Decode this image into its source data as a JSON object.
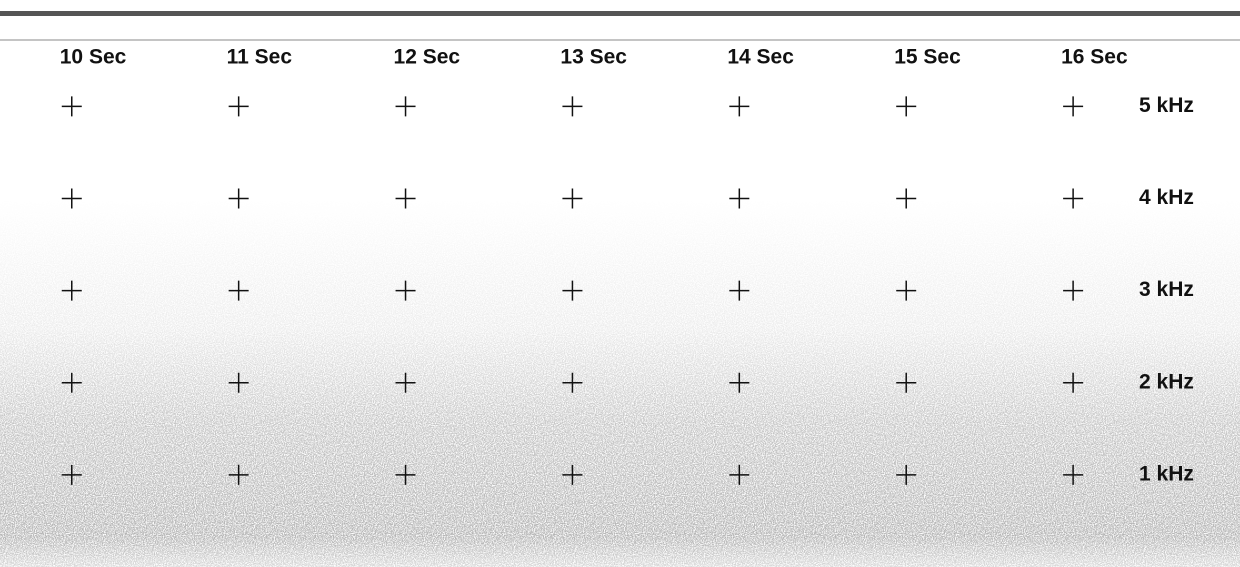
{
  "chart_data": {
    "type": "spectrogram",
    "xlim": [
      9.57,
      17
    ],
    "xticks": [
      {
        "value": 10,
        "label": "10 Sec"
      },
      {
        "value": 11,
        "label": "11 Sec"
      },
      {
        "value": 12,
        "label": "12 Sec"
      },
      {
        "value": 13,
        "label": "13 Sec"
      },
      {
        "value": 14,
        "label": "14 Sec"
      },
      {
        "value": 15,
        "label": "15 Sec"
      },
      {
        "value": 16,
        "label": "16 Sec"
      }
    ],
    "ylim": [
      0,
      5.72
    ],
    "yticks": [
      {
        "value": 5,
        "label": "5 kHz"
      },
      {
        "value": 4,
        "label": "4 kHz"
      },
      {
        "value": 3,
        "label": "3 kHz"
      },
      {
        "value": 2,
        "label": "2 kHz"
      },
      {
        "value": 1,
        "label": "1 kHz"
      }
    ],
    "grid": true
  }
}
